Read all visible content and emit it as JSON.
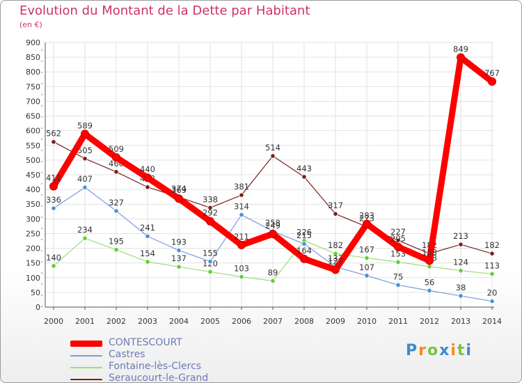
{
  "chart_data": {
    "type": "line",
    "title": "Evolution du Montant de la Dette par Habitant",
    "ylabel": "(en €)",
    "xlabel": "",
    "ylim": [
      0,
      900
    ],
    "yticks": [
      0,
      50,
      100,
      150,
      200,
      250,
      300,
      350,
      400,
      450,
      500,
      550,
      600,
      650,
      700,
      750,
      800,
      850,
      900
    ],
    "grid": true,
    "legend_position": "bottom-left",
    "categories": [
      "2000",
      "2001",
      "2002",
      "2003",
      "2004",
      "2005",
      "2006",
      "2007",
      "2008",
      "2009",
      "2010",
      "2011",
      "2012",
      "2013",
      "2014"
    ],
    "series": [
      {
        "name": "Seraucourt-le-Grand",
        "color": "#7a1f1f",
        "point_color": "#7a1f1f",
        "values": [
          562,
          505,
          460,
          408,
          374,
          338,
          381,
          514,
          443,
          317,
          273,
          227,
          182,
          213,
          182
        ]
      },
      {
        "name": "Fontaine-lès-Clercs",
        "color": "#99dd77",
        "point_color": "#66cc33",
        "values": [
          140,
          234,
          195,
          154,
          137,
          120,
          103,
          89,
          226,
          182,
          167,
          153,
          138,
          124,
          113
        ]
      },
      {
        "name": "Castres",
        "color": "#7799dd",
        "point_color": "#4a90d9",
        "values": [
          336,
          407,
          327,
          241,
          193,
          155,
          314,
          258,
          215,
          137,
          107,
          75,
          56,
          38,
          20
        ]
      },
      {
        "name": "CONTESCOURT",
        "color": "#ff0000",
        "point_color": "#ff0000",
        "values": [
          411,
          589,
          509,
          440,
          369,
          292,
          211,
          249,
          164,
          127,
          283,
          205,
          158,
          849,
          767
        ]
      }
    ],
    "legend_order": [
      "CONTESCOURT",
      "Castres",
      "Fontaine-lès-Clercs",
      "Seraucourt-le-Grand"
    ]
  },
  "brand": {
    "letters": [
      "P",
      "r",
      "o",
      "x",
      "i",
      "t",
      "i"
    ],
    "colors": [
      "#3b8bd1",
      "#f28c1a",
      "#7cc242",
      "#3b8bd1",
      "#f28c1a",
      "#7cc242",
      "#3b8bd1"
    ]
  }
}
